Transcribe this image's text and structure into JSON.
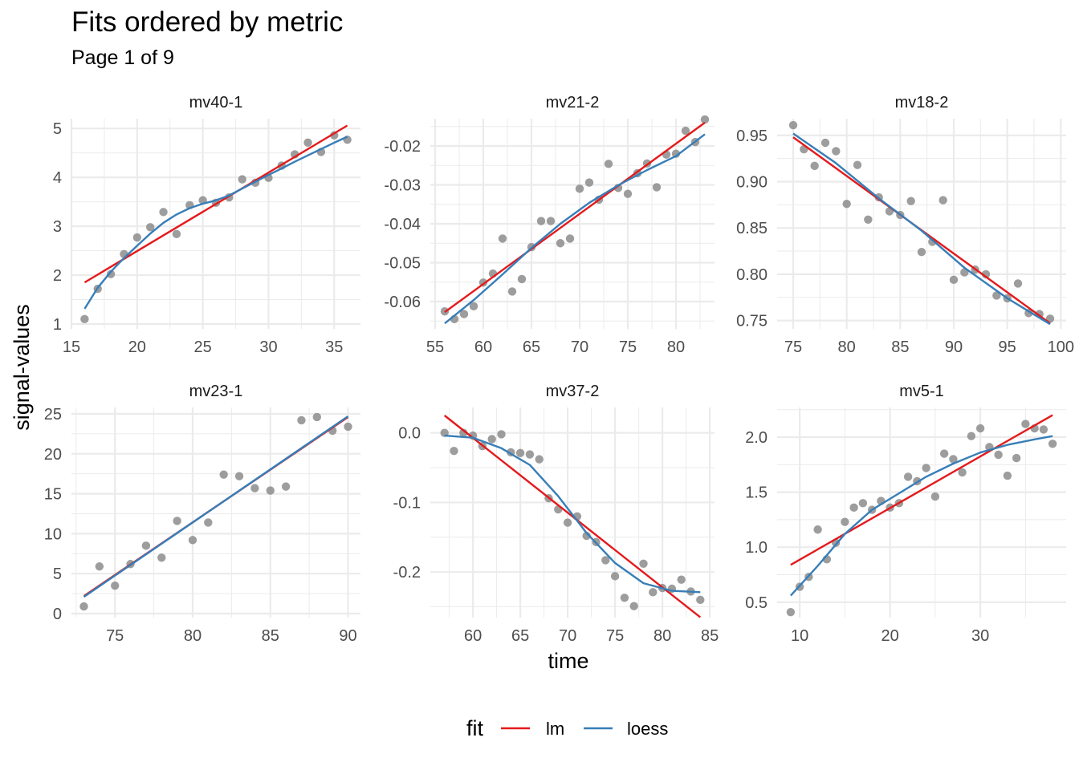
{
  "title": "Fits ordered by metric",
  "subtitle": "Page 1 of 9",
  "xlabel": "time",
  "ylabel": "signal-values",
  "legend": {
    "title": "fit",
    "position": "bottom",
    "items": [
      {
        "name": "lm",
        "color": "#e41a1c"
      },
      {
        "name": "loess",
        "color": "#377eb8"
      }
    ]
  },
  "colors": {
    "points": "#8c8c8c",
    "grid": "#ebebeb",
    "text": "#4d4d4d"
  },
  "chart_data": [
    {
      "type": "scatter",
      "panel": "mv40-1",
      "xlim": [
        15,
        37
      ],
      "ylim": [
        0.9,
        5.2
      ],
      "xticks": [
        15,
        20,
        25,
        30,
        35
      ],
      "yticks": [
        1,
        2,
        3,
        4,
        5
      ],
      "ytick_labels": [
        "1",
        "2",
        "3",
        "4",
        "5"
      ],
      "points": [
        [
          16,
          1.1
        ],
        [
          17,
          1.72
        ],
        [
          18,
          2.02
        ],
        [
          19,
          2.43
        ],
        [
          20,
          2.77
        ],
        [
          21,
          2.98
        ],
        [
          22,
          3.29
        ],
        [
          23,
          2.84
        ],
        [
          24,
          3.43
        ],
        [
          25,
          3.53
        ],
        [
          26,
          3.48
        ],
        [
          27,
          3.59
        ],
        [
          28,
          3.96
        ],
        [
          29,
          3.89
        ],
        [
          30,
          3.99
        ],
        [
          31,
          4.24
        ],
        [
          32,
          4.47
        ],
        [
          33,
          4.71
        ],
        [
          34,
          4.52
        ],
        [
          35,
          4.86
        ],
        [
          36,
          4.77
        ]
      ],
      "lm": [
        [
          16,
          1.85
        ],
        [
          36,
          5.06
        ]
      ],
      "loess": [
        [
          16,
          1.31
        ],
        [
          17,
          1.74
        ],
        [
          18,
          2.07
        ],
        [
          19,
          2.35
        ],
        [
          20,
          2.6
        ],
        [
          21,
          2.85
        ],
        [
          22,
          3.07
        ],
        [
          23,
          3.24
        ],
        [
          24,
          3.37
        ],
        [
          25,
          3.46
        ],
        [
          26,
          3.53
        ],
        [
          27,
          3.63
        ],
        [
          28,
          3.77
        ],
        [
          29,
          3.91
        ],
        [
          30,
          4.05
        ],
        [
          31,
          4.18
        ],
        [
          32,
          4.32
        ],
        [
          33,
          4.45
        ],
        [
          34,
          4.58
        ],
        [
          35,
          4.71
        ],
        [
          36,
          4.83
        ]
      ]
    },
    {
      "type": "scatter",
      "panel": "mv21-2",
      "xlim": [
        54.5,
        84
      ],
      "ylim": [
        -0.067,
        -0.013
      ],
      "xticks": [
        55,
        60,
        65,
        70,
        75,
        80
      ],
      "yticks": [
        -0.06,
        -0.05,
        -0.04,
        -0.03,
        -0.02
      ],
      "ytick_labels": [
        "-0.06",
        "-0.05",
        "-0.04",
        "-0.03",
        "-0.02"
      ],
      "points": [
        [
          56,
          -0.0625
        ],
        [
          57,
          -0.0645
        ],
        [
          58,
          -0.0632
        ],
        [
          59,
          -0.0612
        ],
        [
          60,
          -0.0551
        ],
        [
          61,
          -0.0528
        ],
        [
          62,
          -0.0438
        ],
        [
          63,
          -0.0574
        ],
        [
          64,
          -0.0542
        ],
        [
          65,
          -0.046
        ],
        [
          66,
          -0.0393
        ],
        [
          67,
          -0.0393
        ],
        [
          68,
          -0.045
        ],
        [
          69,
          -0.0438
        ],
        [
          70,
          -0.031
        ],
        [
          71,
          -0.0294
        ],
        [
          72,
          -0.0338
        ],
        [
          73,
          -0.0246
        ],
        [
          74,
          -0.0308
        ],
        [
          75,
          -0.0323
        ],
        [
          76,
          -0.027
        ],
        [
          77,
          -0.0245
        ],
        [
          78,
          -0.0306
        ],
        [
          79,
          -0.0222
        ],
        [
          80,
          -0.022
        ],
        [
          81,
          -0.0161
        ],
        [
          82,
          -0.019
        ],
        [
          83,
          -0.0132
        ]
      ],
      "lm": [
        [
          56,
          -0.0627
        ],
        [
          83,
          -0.014
        ]
      ],
      "loess": [
        [
          56,
          -0.0656
        ],
        [
          59,
          -0.0596
        ],
        [
          62,
          -0.053
        ],
        [
          65,
          -0.0462
        ],
        [
          68,
          -0.04
        ],
        [
          71,
          -0.0346
        ],
        [
          74,
          -0.0301
        ],
        [
          77,
          -0.0262
        ],
        [
          80,
          -0.0226
        ],
        [
          83,
          -0.017
        ]
      ]
    },
    {
      "type": "scatter",
      "panel": "mv18-2",
      "xlim": [
        73.5,
        100.5
      ],
      "ylim": [
        0.741,
        0.968
      ],
      "xticks": [
        75,
        80,
        85,
        90,
        95,
        100
      ],
      "yticks": [
        0.75,
        0.8,
        0.85,
        0.9,
        0.95
      ],
      "ytick_labels": [
        "0.75",
        "0.80",
        "0.85",
        "0.90",
        "0.95"
      ],
      "points": [
        [
          75,
          0.961
        ],
        [
          76,
          0.935
        ],
        [
          77,
          0.917
        ],
        [
          78,
          0.942
        ],
        [
          79,
          0.933
        ],
        [
          80,
          0.876
        ],
        [
          81,
          0.918
        ],
        [
          82,
          0.859
        ],
        [
          83,
          0.883
        ],
        [
          84,
          0.868
        ],
        [
          85,
          0.864
        ],
        [
          86,
          0.879
        ],
        [
          87,
          0.824
        ],
        [
          88,
          0.835
        ],
        [
          89,
          0.88
        ],
        [
          90,
          0.794
        ],
        [
          91,
          0.802
        ],
        [
          92,
          0.805
        ],
        [
          93,
          0.8
        ],
        [
          94,
          0.777
        ],
        [
          95,
          0.774
        ],
        [
          96,
          0.79
        ],
        [
          97,
          0.758
        ],
        [
          98,
          0.757
        ],
        [
          99,
          0.752
        ]
      ],
      "lm": [
        [
          75,
          0.948
        ],
        [
          99,
          0.747
        ]
      ],
      "loess": [
        [
          75,
          0.952
        ],
        [
          79,
          0.92
        ],
        [
          83,
          0.882
        ],
        [
          87,
          0.847
        ],
        [
          91,
          0.807
        ],
        [
          95,
          0.774
        ],
        [
          99,
          0.746
        ]
      ]
    },
    {
      "type": "scatter",
      "panel": "mv23-1",
      "xlim": [
        72.2,
        90.8
      ],
      "ylim": [
        -0.5,
        25.8
      ],
      "xticks": [
        75,
        80,
        85,
        90
      ],
      "yticks": [
        0,
        5,
        10,
        15,
        20,
        25
      ],
      "ytick_labels": [
        "0",
        "5",
        "10",
        "15",
        "20",
        "25"
      ],
      "points": [
        [
          73,
          0.9
        ],
        [
          74,
          5.9
        ],
        [
          75,
          3.5
        ],
        [
          76,
          6.2
        ],
        [
          77,
          8.5
        ],
        [
          78,
          7.0
        ],
        [
          79,
          11.6
        ],
        [
          80,
          9.2
        ],
        [
          81,
          11.4
        ],
        [
          82,
          17.4
        ],
        [
          83,
          17.2
        ],
        [
          84,
          15.7
        ],
        [
          85,
          15.4
        ],
        [
          86,
          15.9
        ],
        [
          87,
          24.2
        ],
        [
          88,
          24.6
        ],
        [
          89,
          22.9
        ],
        [
          90,
          23.4
        ]
      ],
      "lm": [
        [
          73,
          2.2
        ],
        [
          90,
          24.6
        ]
      ],
      "loess": [
        [
          73,
          2.1
        ],
        [
          90,
          24.7
        ]
      ]
    },
    {
      "type": "scatter",
      "panel": "mv37-2",
      "xlim": [
        55.5,
        85.5
      ],
      "ylim": [
        -0.2655,
        0.0365
      ],
      "xticks": [
        60,
        65,
        70,
        75,
        80,
        85
      ],
      "yticks": [
        -0.2,
        -0.1,
        0.0
      ],
      "ytick_labels": [
        "-0.2",
        "-0.1",
        "0.0"
      ],
      "points": [
        [
          57,
          0.0
        ],
        [
          58,
          -0.026
        ],
        [
          59,
          0.0
        ],
        [
          60,
          -0.004
        ],
        [
          61,
          -0.019
        ],
        [
          62,
          -0.009
        ],
        [
          63,
          -0.002
        ],
        [
          64,
          -0.028
        ],
        [
          65,
          -0.029
        ],
        [
          66,
          -0.031
        ],
        [
          67,
          -0.038
        ],
        [
          68,
          -0.094
        ],
        [
          69,
          -0.11
        ],
        [
          70,
          -0.129
        ],
        [
          71,
          -0.12
        ],
        [
          72,
          -0.148
        ],
        [
          73,
          -0.157
        ],
        [
          74,
          -0.183
        ],
        [
          75,
          -0.206
        ],
        [
          76,
          -0.237
        ],
        [
          77,
          -0.249
        ],
        [
          78,
          -0.188
        ],
        [
          79,
          -0.229
        ],
        [
          80,
          -0.223
        ],
        [
          81,
          -0.224
        ],
        [
          82,
          -0.211
        ],
        [
          83,
          -0.228
        ],
        [
          84,
          -0.24
        ]
      ],
      "lm": [
        [
          57,
          0.025
        ],
        [
          84,
          -0.265
        ]
      ],
      "loess": [
        [
          57,
          -0.004
        ],
        [
          60,
          -0.007
        ],
        [
          63,
          -0.022
        ],
        [
          66,
          -0.046
        ],
        [
          69,
          -0.091
        ],
        [
          72,
          -0.144
        ],
        [
          75,
          -0.187
        ],
        [
          78,
          -0.216
        ],
        [
          81,
          -0.227
        ],
        [
          84,
          -0.229
        ]
      ]
    },
    {
      "type": "scatter",
      "panel": "mv5-1",
      "xlim": [
        7.5,
        39.5
      ],
      "ylim": [
        0.36,
        2.27
      ],
      "xticks": [
        10,
        20,
        30
      ],
      "yticks": [
        0.5,
        1.0,
        1.5,
        2.0
      ],
      "ytick_labels": [
        "0.5",
        "1.0",
        "1.5",
        "2.0"
      ],
      "points": [
        [
          9,
          0.41
        ],
        [
          10,
          0.64
        ],
        [
          11,
          0.73
        ],
        [
          12,
          1.16
        ],
        [
          13,
          0.89
        ],
        [
          14,
          1.04
        ],
        [
          15,
          1.23
        ],
        [
          16,
          1.36
        ],
        [
          17,
          1.4
        ],
        [
          18,
          1.34
        ],
        [
          19,
          1.42
        ],
        [
          20,
          1.36
        ],
        [
          21,
          1.4
        ],
        [
          22,
          1.64
        ],
        [
          23,
          1.6
        ],
        [
          24,
          1.72
        ],
        [
          25,
          1.46
        ],
        [
          26,
          1.85
        ],
        [
          27,
          1.8
        ],
        [
          28,
          1.68
        ],
        [
          29,
          2.01
        ],
        [
          30,
          2.08
        ],
        [
          31,
          1.91
        ],
        [
          32,
          1.84
        ],
        [
          33,
          1.65
        ],
        [
          34,
          1.81
        ],
        [
          35,
          2.12
        ],
        [
          36,
          2.08
        ],
        [
          37,
          2.07
        ],
        [
          38,
          1.94
        ]
      ],
      "lm": [
        [
          9,
          0.84
        ],
        [
          38,
          2.2
        ]
      ],
      "loess": [
        [
          9,
          0.56
        ],
        [
          12,
          0.83
        ],
        [
          15,
          1.12
        ],
        [
          18,
          1.34
        ],
        [
          21,
          1.49
        ],
        [
          24,
          1.64
        ],
        [
          27,
          1.76
        ],
        [
          30,
          1.86
        ],
        [
          33,
          1.93
        ],
        [
          36,
          1.98
        ],
        [
          38,
          2.01
        ]
      ]
    }
  ]
}
